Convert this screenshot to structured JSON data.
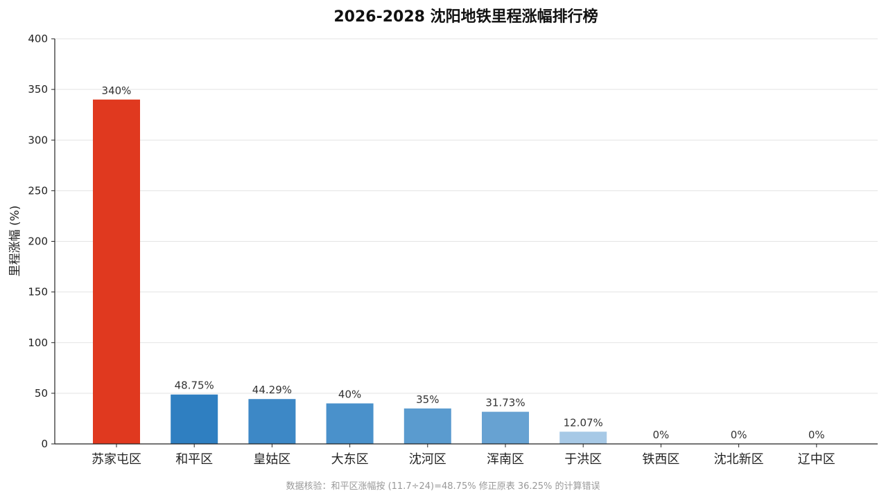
{
  "chart_data": {
    "type": "bar",
    "title": "2026-2028 沈阳地铁里程涨幅排行榜",
    "ylabel": "里程涨幅 (%)",
    "xlabel": "",
    "ylim": [
      0,
      400
    ],
    "yticks": [
      0,
      50,
      100,
      150,
      200,
      250,
      300,
      350,
      400
    ],
    "grid": true,
    "categories": [
      "苏家屯区",
      "和平区",
      "皇姑区",
      "大东区",
      "沈河区",
      "浑南区",
      "于洪区",
      "铁西区",
      "沈北新区",
      "辽中区"
    ],
    "values": [
      340,
      48.75,
      44.29,
      40,
      35,
      31.73,
      12.07,
      0,
      0,
      0
    ],
    "data_labels": [
      "340%",
      "48.75%",
      "44.29%",
      "40%",
      "35%",
      "31.73%",
      "12.07%",
      "0%",
      "0%",
      "0%"
    ],
    "colors": [
      "#e0391f",
      "#2f7fc1",
      "#3d88c6",
      "#4a91cb",
      "#5a9bcf",
      "#67a2d2",
      "#a7c9e6",
      "#c6dcef",
      "#c6dcef",
      "#c6dcef"
    ]
  },
  "footnote": "数据核验：和平区涨幅按 (11.7÷24)=48.75% 修正原表 36.25% 的计算错误"
}
